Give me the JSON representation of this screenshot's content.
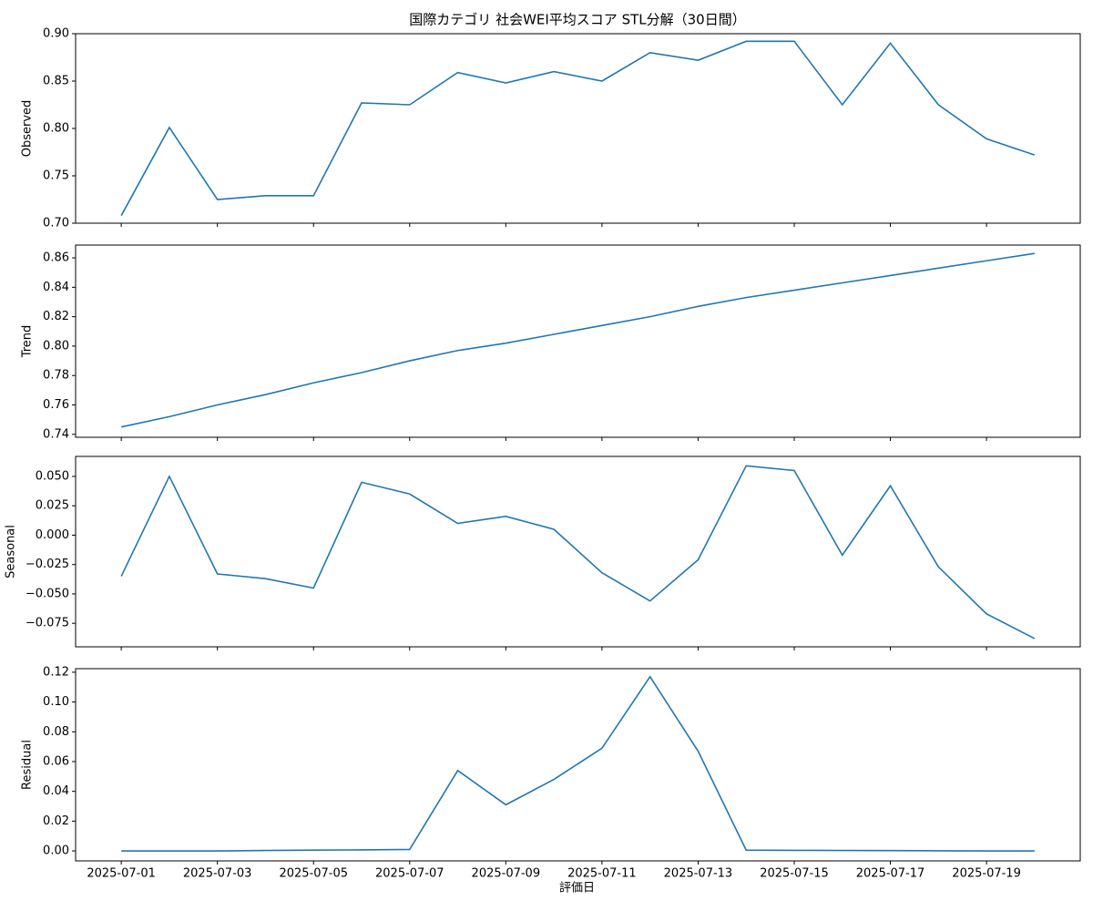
{
  "chart_data": [
    {
      "type": "line",
      "title": "国際カテゴリ 社会WEI平均スコア STL分解（30日間）",
      "ylabel": "Observed",
      "x": [
        "2025-07-01",
        "2025-07-02",
        "2025-07-03",
        "2025-07-04",
        "2025-07-05",
        "2025-07-06",
        "2025-07-07",
        "2025-07-08",
        "2025-07-09",
        "2025-07-10",
        "2025-07-11",
        "2025-07-12",
        "2025-07-13",
        "2025-07-14",
        "2025-07-15",
        "2025-07-16",
        "2025-07-17",
        "2025-07-18",
        "2025-07-19",
        "2025-07-20"
      ],
      "values": [
        0.708,
        0.801,
        0.725,
        0.729,
        0.729,
        0.827,
        0.825,
        0.859,
        0.848,
        0.86,
        0.85,
        0.88,
        0.872,
        0.892,
        0.892,
        0.825,
        0.89,
        0.825,
        0.789,
        0.772
      ],
      "color": "#1f77b4",
      "ylim": [
        0.7,
        0.9
      ],
      "yticks": [
        {
          "value": 0.7,
          "label": "0.70"
        },
        0.75,
        {
          "value": 0.8,
          "label": "0.80"
        },
        0.85,
        {
          "value": 0.9,
          "label": "0.90"
        }
      ]
    },
    {
      "type": "line",
      "ylabel": "Trend",
      "x": [
        "2025-07-01",
        "2025-07-02",
        "2025-07-03",
        "2025-07-04",
        "2025-07-05",
        "2025-07-06",
        "2025-07-07",
        "2025-07-08",
        "2025-07-09",
        "2025-07-10",
        "2025-07-11",
        "2025-07-12",
        "2025-07-13",
        "2025-07-14",
        "2025-07-15",
        "2025-07-16",
        "2025-07-17",
        "2025-07-18",
        "2025-07-19",
        "2025-07-20"
      ],
      "values": [
        0.745,
        0.752,
        0.76,
        0.767,
        0.775,
        0.782,
        0.79,
        0.797,
        0.802,
        0.808,
        0.814,
        0.82,
        0.827,
        0.833,
        0.838,
        0.843,
        0.848,
        0.853,
        0.858,
        0.863
      ],
      "color": "#1f77b4",
      "ylim": [
        0.738,
        0.8687
      ],
      "yticks": [
        0.74,
        0.76,
        0.78,
        {
          "value": 0.8,
          "label": "0.80"
        },
        0.82,
        0.84,
        0.86
      ]
    },
    {
      "type": "line",
      "ylabel": "Seasonal",
      "x": [
        "2025-07-01",
        "2025-07-02",
        "2025-07-03",
        "2025-07-04",
        "2025-07-05",
        "2025-07-06",
        "2025-07-07",
        "2025-07-08",
        "2025-07-09",
        "2025-07-10",
        "2025-07-11",
        "2025-07-12",
        "2025-07-13",
        "2025-07-14",
        "2025-07-15",
        "2025-07-16",
        "2025-07-17",
        "2025-07-18",
        "2025-07-19",
        "2025-07-20"
      ],
      "values": [
        -0.035,
        0.05,
        -0.033,
        -0.037,
        -0.045,
        0.045,
        0.035,
        0.01,
        0.016,
        0.005,
        -0.032,
        -0.056,
        -0.021,
        0.059,
        0.055,
        -0.017,
        0.042,
        -0.027,
        -0.067,
        -0.088
      ],
      "color": "#1f77b4",
      "ylim": [
        -0.095,
        0.067
      ],
      "yticks": [
        {
          "value": -0.075,
          "label": "−0.075"
        },
        {
          "value": -0.05,
          "label": "−0.050"
        },
        {
          "value": -0.025,
          "label": "−0.025"
        },
        {
          "value": 0,
          "label": "0.000"
        },
        0.025,
        {
          "value": 0.05,
          "label": "0.050"
        }
      ]
    },
    {
      "type": "line",
      "ylabel": "Residual",
      "xlabel": "評価日",
      "x": [
        "2025-07-01",
        "2025-07-02",
        "2025-07-03",
        "2025-07-04",
        "2025-07-05",
        "2025-07-06",
        "2025-07-07",
        "2025-07-08",
        "2025-07-09",
        "2025-07-10",
        "2025-07-11",
        "2025-07-12",
        "2025-07-13",
        "2025-07-14",
        "2025-07-15",
        "2025-07-16",
        "2025-07-17",
        "2025-07-18",
        "2025-07-19",
        "2025-07-20"
      ],
      "values": [
        0,
        0,
        0,
        0.0003,
        0.0005,
        0.0007,
        0.001,
        0.054,
        0.031,
        0.048,
        0.069,
        0.117,
        0.067,
        0.0005,
        0.0004,
        0.0003,
        0.0002,
        0.0001,
        0,
        0
      ],
      "color": "#1f77b4",
      "ylim": [
        -0.0067,
        0.1224
      ],
      "yticks": [
        {
          "value": 0,
          "label": "0.00"
        },
        0.02,
        0.04,
        0.06,
        0.08,
        {
          "value": 0.1,
          "label": "0.10"
        },
        {
          "value": 0.12,
          "label": "0.12"
        }
      ],
      "xticks": [
        "2025-07-01",
        "2025-07-03",
        "2025-07-05",
        "2025-07-07",
        "2025-07-09",
        "2025-07-11",
        "2025-07-13",
        "2025-07-15",
        "2025-07-17",
        "2025-07-19"
      ]
    }
  ]
}
